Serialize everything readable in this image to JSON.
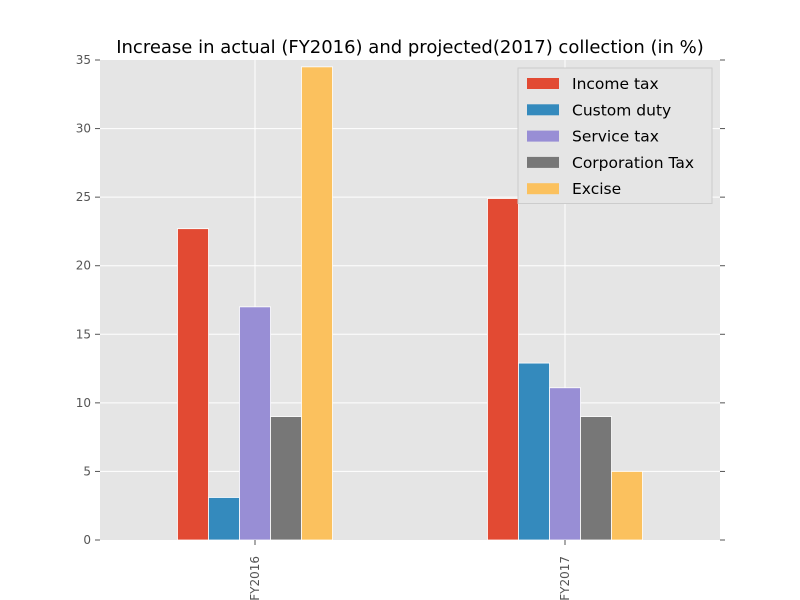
{
  "chart_data": {
    "type": "bar",
    "title": "Increase in actual (FY2016) and projected(2017) collection (in %)",
    "xlabel": "",
    "ylabel": "",
    "categories": [
      "FY2016",
      "FY2017"
    ],
    "ylim": [
      0,
      35
    ],
    "yticks": [
      "0",
      "5",
      "10",
      "15",
      "20",
      "25",
      "30",
      "35"
    ],
    "grid": true,
    "legend_position": "top-right",
    "series": [
      {
        "name": "Income tax",
        "color": "#E24A33",
        "values": [
          22.7,
          24.9
        ]
      },
      {
        "name": "Custom duty",
        "color": "#348ABD",
        "values": [
          3.1,
          12.9
        ]
      },
      {
        "name": "Service tax",
        "color": "#988ED5",
        "values": [
          17.0,
          11.1
        ]
      },
      {
        "name": "Corporation Tax",
        "color": "#777777",
        "values": [
          9.0,
          9.0
        ]
      },
      {
        "name": "Excise",
        "color": "#FBC15E",
        "values": [
          34.5,
          5.0
        ]
      }
    ]
  }
}
